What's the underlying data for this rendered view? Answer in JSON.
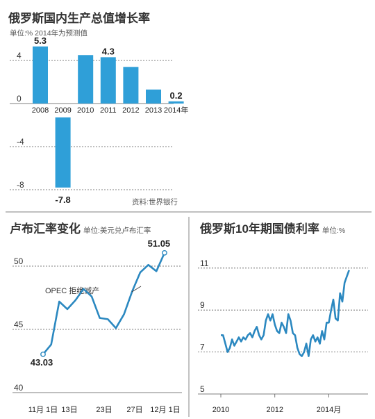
{
  "gdp": {
    "title": "俄罗斯国内生产总值增长率",
    "subtitle": "单位:%  2014年为预测值",
    "source": "资料:世界银行",
    "color": "#2f9fd8"
  },
  "rub": {
    "title": "卢布汇率变化",
    "unit": "单位:美元兑卢布汇率",
    "annotation": "OPEC 拒绝减产",
    "start_label": "43.03",
    "end_label": "51.05",
    "color": "#2b88c0"
  },
  "bond": {
    "title": "俄罗斯10年期国债利率",
    "unit": "单位:%",
    "color": "#2b88c0"
  },
  "chart_data": [
    {
      "type": "bar",
      "categories": [
        "2008",
        "2009",
        "2010",
        "2011",
        "2012",
        "2013",
        "2014年"
      ],
      "values": [
        5.3,
        -7.8,
        4.5,
        4.3,
        3.4,
        1.3,
        0.2
      ],
      "data_labels": [
        "5.3",
        "-7.8",
        "",
        "4.3",
        "",
        "",
        "0.2"
      ],
      "yticks": [
        "4",
        "0",
        "-4",
        "-8"
      ],
      "ytick_values": [
        4,
        0,
        -4,
        -8
      ],
      "ylim": [
        -8.5,
        6
      ]
    },
    {
      "type": "line",
      "xticks": [
        "11月 1日",
        "13日",
        "23日",
        "27日",
        "12月 1日"
      ],
      "x": [
        1,
        3,
        5,
        7,
        9,
        11,
        13,
        15,
        17,
        19,
        21,
        23,
        25,
        27,
        29,
        31
      ],
      "values": [
        43.03,
        43.8,
        47.2,
        46.6,
        47.3,
        48.2,
        47.6,
        45.9,
        45.8,
        45.1,
        46.2,
        48.0,
        49.5,
        50.1,
        49.6,
        51.05
      ],
      "yticks": [
        "50",
        "45",
        "40"
      ],
      "ytick_values": [
        50,
        45,
        40
      ],
      "ylim": [
        40,
        52
      ]
    },
    {
      "type": "line",
      "xticks": [
        "2010",
        "2012",
        "2014月"
      ],
      "xtick_values": [
        0,
        24,
        48
      ],
      "x": [
        0,
        1,
        2,
        3,
        4,
        5,
        6,
        7,
        8,
        9,
        10,
        11,
        12,
        13,
        14,
        15,
        16,
        17,
        18,
        19,
        20,
        21,
        22,
        23,
        24,
        25,
        26,
        27,
        28,
        29,
        30,
        31,
        32,
        33,
        34,
        35,
        36,
        37,
        38,
        39,
        40,
        41,
        42,
        43,
        44,
        45,
        46,
        47,
        48,
        49,
        50,
        51,
        52,
        53,
        54,
        55,
        56,
        57
      ],
      "values": [
        7.8,
        7.8,
        7.4,
        7.0,
        7.2,
        7.6,
        7.3,
        7.5,
        7.7,
        7.5,
        7.7,
        7.6,
        7.8,
        7.9,
        7.7,
        8.0,
        8.2,
        7.8,
        7.6,
        7.8,
        8.5,
        8.8,
        8.5,
        8.8,
        8.3,
        8.0,
        7.9,
        8.4,
        8.2,
        7.9,
        8.8,
        8.5,
        7.9,
        7.8,
        7.2,
        6.9,
        6.8,
        7.0,
        7.4,
        6.8,
        7.6,
        7.8,
        7.5,
        7.7,
        7.4,
        8.0,
        7.6,
        8.4,
        8.4,
        9.0,
        9.5,
        8.6,
        8.5,
        9.8,
        9.4,
        10.3,
        10.6,
        10.9
      ],
      "yticks": [
        "11",
        "9",
        "7",
        "5"
      ],
      "ytick_values": [
        11,
        9,
        7,
        5
      ],
      "ylim": [
        5,
        11.5
      ]
    }
  ]
}
